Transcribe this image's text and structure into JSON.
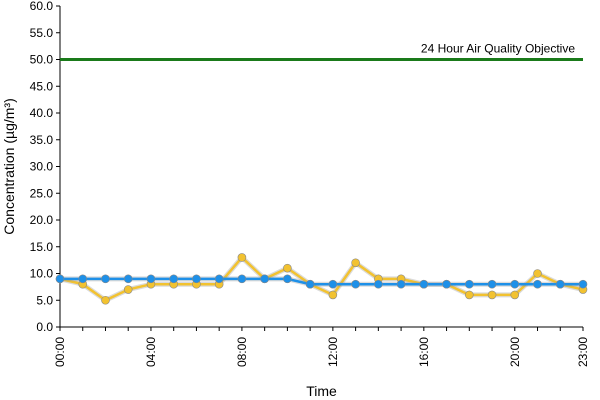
{
  "chart_data": {
    "type": "line",
    "title": "",
    "xlabel": "Time",
    "ylabel": "Concentration (µg/m³)",
    "ylim": [
      0,
      60
    ],
    "y_ticks": [
      "0.0",
      "5.0",
      "10.0",
      "15.0",
      "20.0",
      "25.0",
      "30.0",
      "35.0",
      "40.0",
      "45.0",
      "50.0",
      "55.0",
      "60.0"
    ],
    "x": [
      0,
      1,
      2,
      3,
      4,
      5,
      6,
      7,
      8,
      9,
      10,
      11,
      12,
      13,
      14,
      15,
      16,
      17,
      18,
      19,
      20,
      21,
      22,
      23
    ],
    "x_ticks": [
      {
        "x": 0,
        "label": "00:00"
      },
      {
        "x": 4,
        "label": "04:00"
      },
      {
        "x": 8,
        "label": "08:00"
      },
      {
        "x": 12,
        "label": "12:00"
      },
      {
        "x": 16,
        "label": "16:00"
      },
      {
        "x": 20,
        "label": "20:00"
      },
      {
        "x": 23,
        "label": "23:00"
      }
    ],
    "grid": false,
    "objective": {
      "value": 50,
      "label": "24 Hour Air Quality Objective",
      "color": "#1a7a1a"
    },
    "series": [
      {
        "color": "#f2c230",
        "values": [
          9,
          8,
          5,
          7,
          8,
          8,
          8,
          8,
          13,
          9,
          11,
          8,
          6,
          12,
          9,
          9,
          8,
          8,
          6,
          6,
          6,
          10,
          8,
          7
        ]
      },
      {
        "color": "#1e90e8",
        "values": [
          9,
          9,
          9,
          9,
          9,
          9,
          9,
          9,
          9,
          9,
          9,
          8,
          8,
          8,
          8,
          8,
          8,
          8,
          8,
          8,
          8,
          8,
          8,
          8
        ]
      }
    ]
  }
}
